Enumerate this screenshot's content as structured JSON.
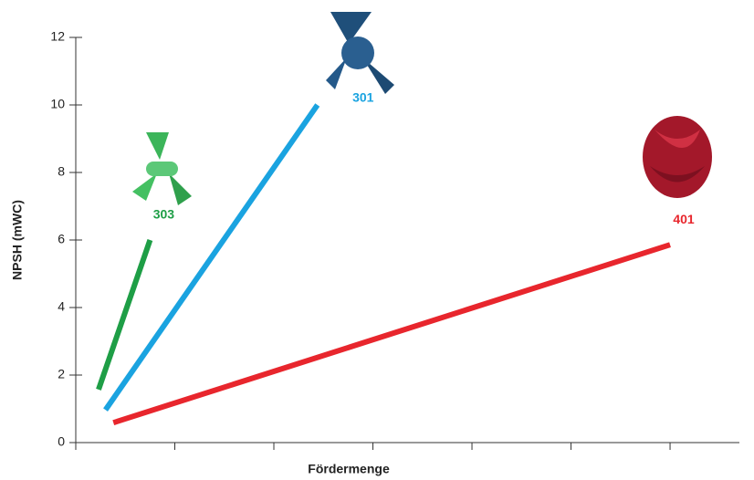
{
  "chart_data": {
    "type": "line",
    "x_label": "Fördermenge",
    "y_label": "NPSH (mWC)",
    "xlim": [
      0,
      6.7
    ],
    "xticks": [
      0,
      1,
      2,
      3,
      4,
      5,
      6
    ],
    "ylim": [
      0,
      12
    ],
    "yticks": [
      0,
      2,
      4,
      6,
      8,
      10,
      12
    ],
    "series": [
      {
        "name": "303",
        "color": "#1e9e46",
        "x": [
          0.23,
          0.75
        ],
        "values": [
          1.57,
          6.0
        ]
      },
      {
        "name": "301",
        "color": "#1aa3e0",
        "x": [
          0.3,
          2.44
        ],
        "values": [
          0.97,
          10.0
        ]
      },
      {
        "name": "401",
        "color": "#e8262d",
        "x": [
          0.38,
          6.0
        ],
        "values": [
          0.59,
          5.86
        ]
      }
    ]
  }
}
